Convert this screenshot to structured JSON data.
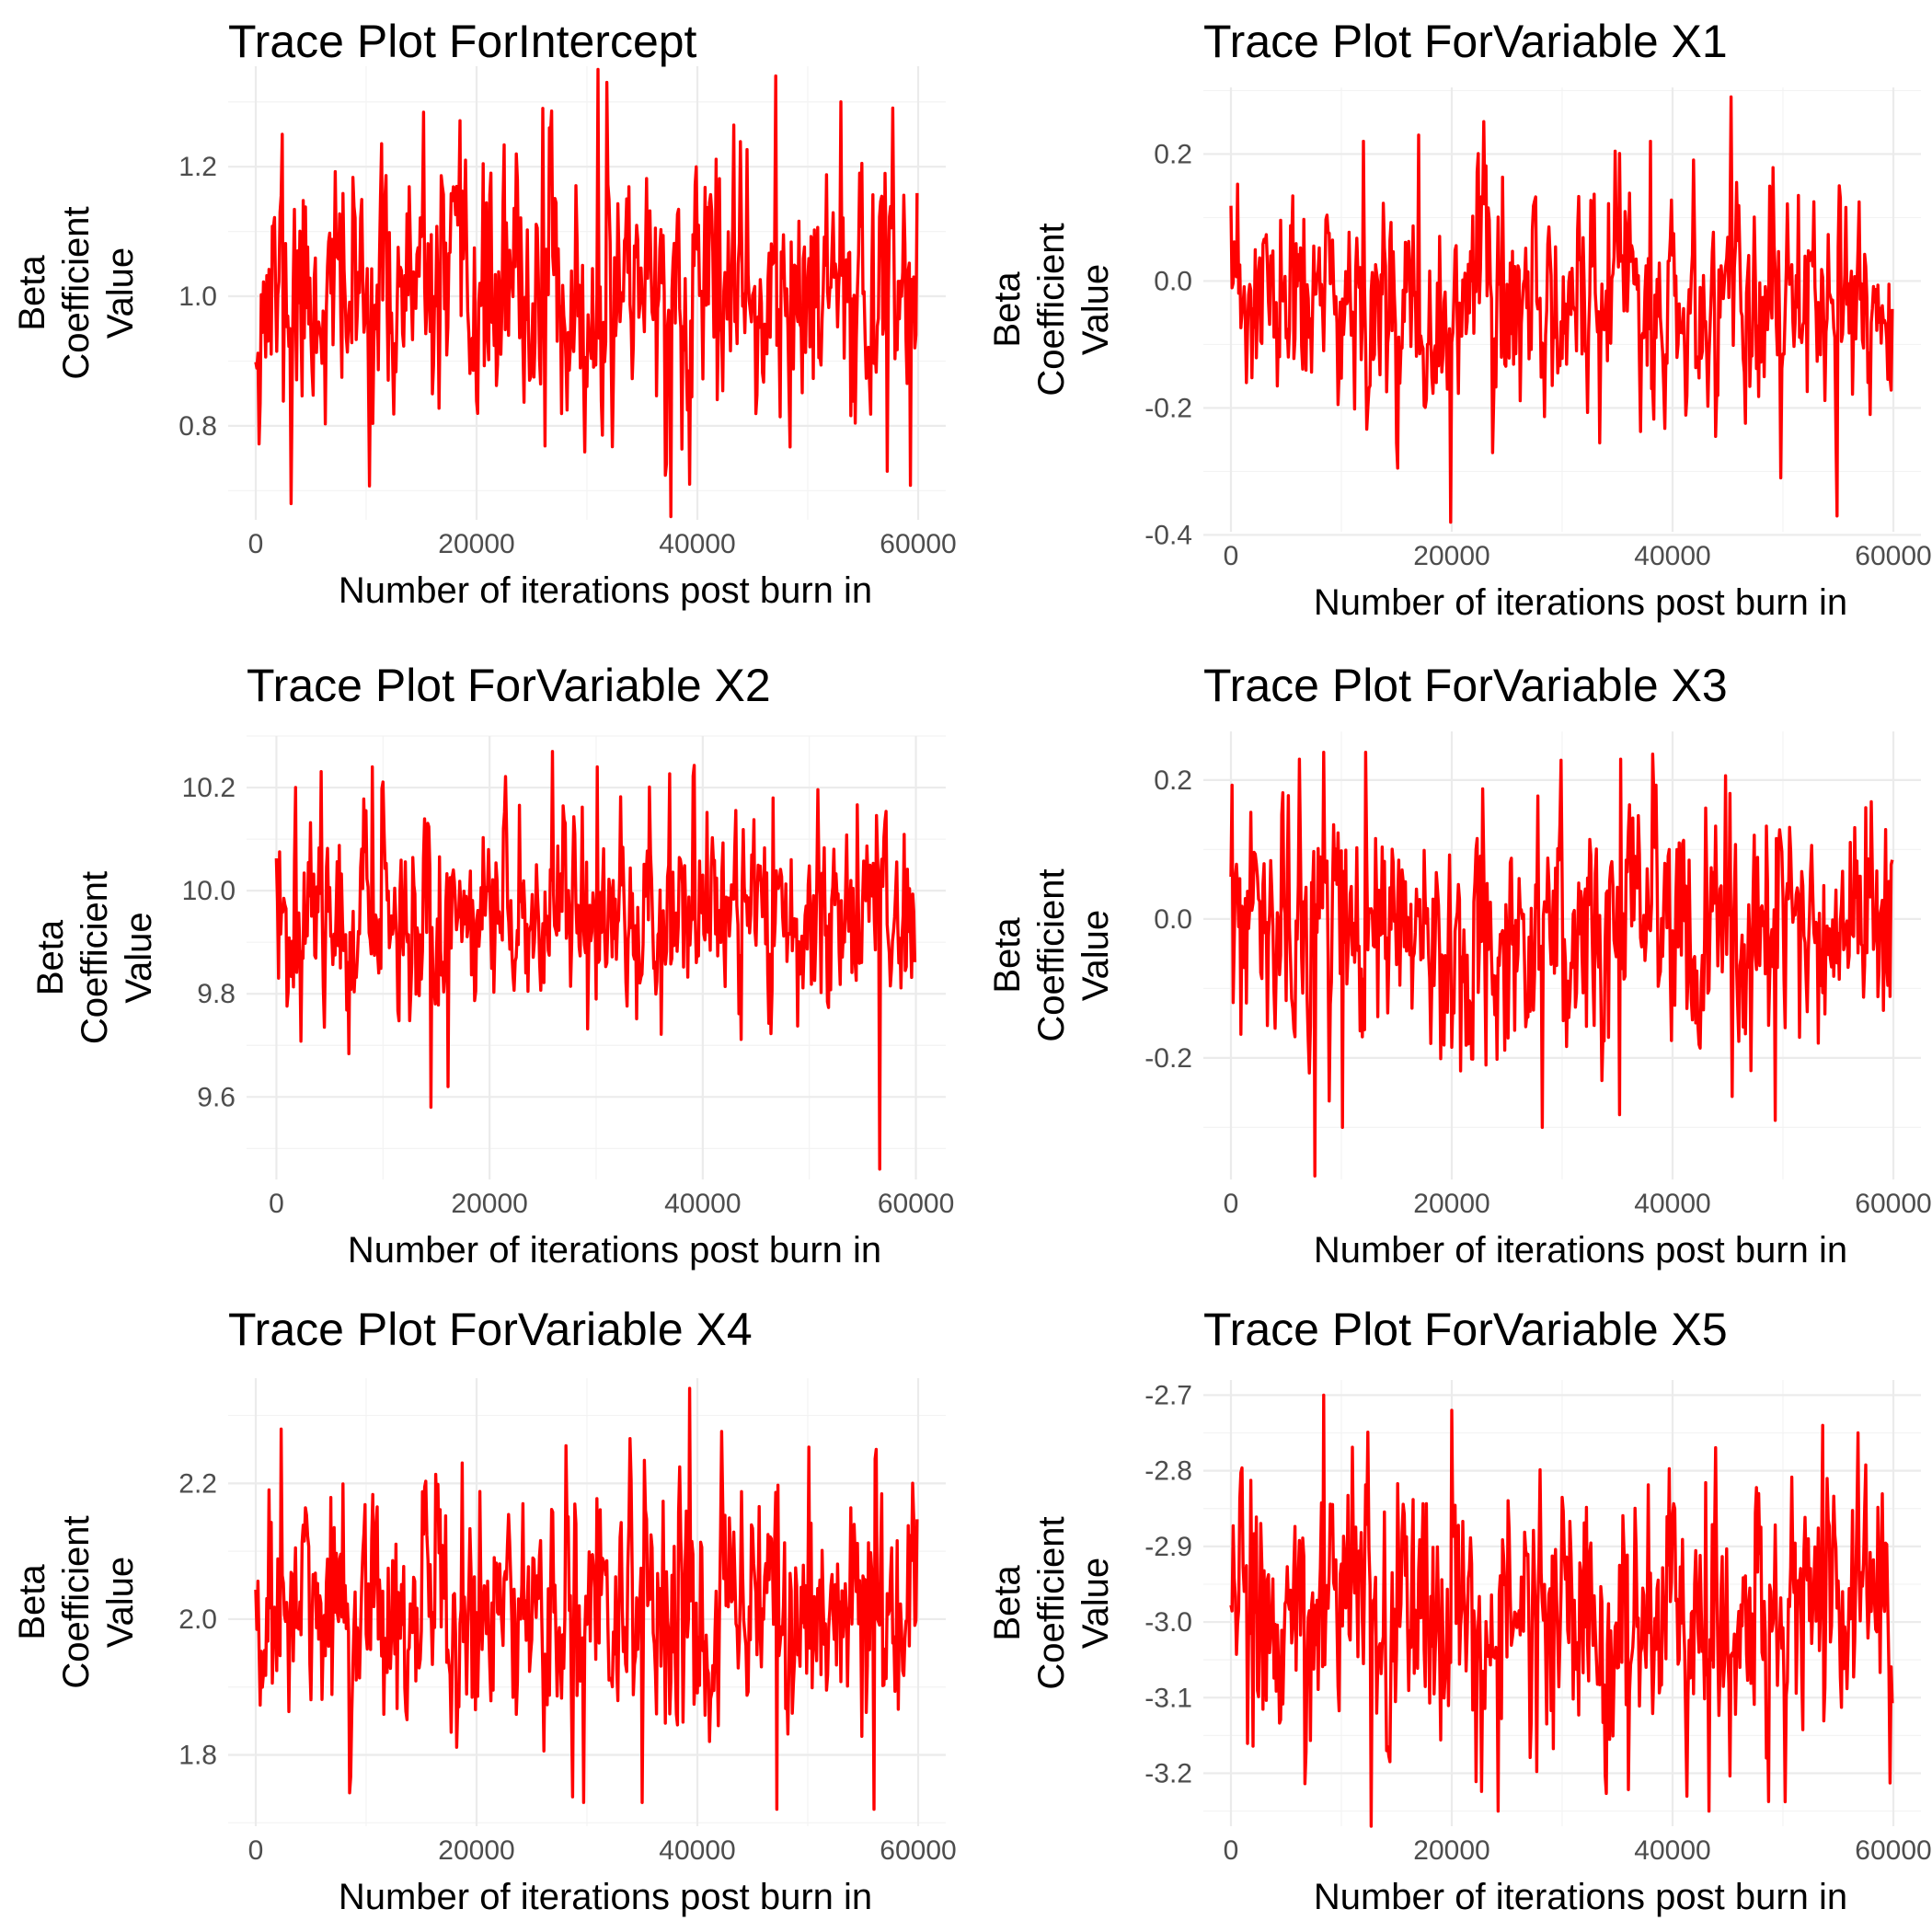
{
  "chart_data": [
    {
      "type": "line",
      "title": "Trace Plot ForIntercept",
      "xlabel": "Number of iterations post burn in",
      "ylabel_lines": [
        "Beta",
        "Coefficient",
        "Value"
      ],
      "xlim": [
        -2500,
        62500
      ],
      "ylim": [
        0.655,
        1.355
      ],
      "xticks": [
        0,
        20000,
        40000,
        60000
      ],
      "yticks": [
        0.8,
        1.0,
        1.2
      ],
      "xtick_labels": [
        "0",
        "20000",
        "40000",
        "60000"
      ],
      "ytick_labels": [
        "0.8",
        "1.0",
        "1.2"
      ],
      "line_color": "#ff0000",
      "series": {
        "mean": 1.0,
        "sd": 0.095,
        "count": 600,
        "seed": 11,
        "extremes": [
          [
            3200,
            0.68
          ],
          [
            31000,
            1.35
          ],
          [
            31800,
            1.33
          ],
          [
            37600,
            0.66
          ],
          [
            39300,
            0.71
          ],
          [
            47100,
            1.34
          ],
          [
            57200,
            0.73
          ],
          [
            2400,
            1.25
          ],
          [
            26000,
            1.29
          ],
          [
            53000,
            1.3
          ]
        ],
        "x_range": [
          0,
          59900
        ]
      }
    },
    {
      "type": "line",
      "title": "Trace Plot ForVariable X1",
      "xlabel": "Number of iterations post burn in",
      "ylabel_lines": [
        "Beta",
        "Coefficient",
        "Value"
      ],
      "xlim": [
        -2500,
        62500
      ],
      "ylim": [
        -0.395,
        0.305
      ],
      "xticks": [
        0,
        20000,
        40000,
        60000
      ],
      "yticks": [
        -0.4,
        -0.2,
        0.0,
        0.2
      ],
      "xtick_labels": [
        "0",
        "20000",
        "40000",
        "60000"
      ],
      "ytick_labels": [
        "-0.4",
        "-0.2",
        "0.0",
        "0.2"
      ],
      "line_color": "#ff0000",
      "series": {
        "mean": -0.04,
        "sd": 0.085,
        "count": 600,
        "seed": 23,
        "extremes": [
          [
            19900,
            -0.38
          ],
          [
            45300,
            0.29
          ],
          [
            54900,
            -0.37
          ],
          [
            17000,
            0.23
          ],
          [
            12000,
            0.22
          ],
          [
            38000,
            0.22
          ],
          [
            49800,
            -0.31
          ]
        ],
        "x_range": [
          0,
          59900
        ]
      }
    },
    {
      "type": "line",
      "title": "Trace Plot ForVariable X2",
      "xlabel": "Number of iterations post burn in",
      "ylabel_lines": [
        "Beta",
        "Coefficient",
        "Value"
      ],
      "xlim": [
        -2800,
        62800
      ],
      "ylim": [
        9.44,
        10.3
      ],
      "xticks": [
        0,
        20000,
        40000,
        60000
      ],
      "yticks": [
        9.6,
        9.8,
        10.0,
        10.2
      ],
      "xtick_labels": [
        "0",
        "20000",
        "40000",
        "60000"
      ],
      "ytick_labels": [
        "9.6",
        "9.8",
        "10.0",
        "10.2"
      ],
      "line_color": "#ff0000",
      "series": {
        "mean": 9.96,
        "sd": 0.095,
        "count": 600,
        "seed": 37,
        "extremes": [
          [
            56600,
            9.46
          ],
          [
            25900,
            10.27
          ],
          [
            14500,
            9.58
          ],
          [
            16100,
            9.62
          ],
          [
            9000,
            10.24
          ],
          [
            30100,
            10.24
          ],
          [
            1800,
            10.2
          ]
        ],
        "x_range": [
          0,
          59900
        ]
      }
    },
    {
      "type": "line",
      "title": "Trace Plot ForVariable X3",
      "xlabel": "Number of iterations post burn in",
      "ylabel_lines": [
        "Beta",
        "Coefficient",
        "Value"
      ],
      "xlim": [
        -2500,
        62500
      ],
      "ylim": [
        -0.375,
        0.27
      ],
      "xticks": [
        0,
        20000,
        40000,
        60000
      ],
      "yticks": [
        -0.2,
        0.0,
        0.2
      ],
      "xtick_labels": [
        "0",
        "20000",
        "40000",
        "60000"
      ],
      "ytick_labels": [
        "-0.2",
        "0.0",
        "0.2"
      ],
      "line_color": "#ff0000",
      "series": {
        "mean": -0.02,
        "sd": 0.085,
        "count": 600,
        "seed": 53,
        "extremes": [
          [
            7600,
            -0.37
          ],
          [
            12200,
            0.24
          ],
          [
            8400,
            0.24
          ],
          [
            6200,
            0.23
          ],
          [
            35300,
            0.23
          ],
          [
            10100,
            -0.3
          ],
          [
            28200,
            -0.3
          ],
          [
            49300,
            -0.29
          ]
        ],
        "x_range": [
          0,
          59900
        ]
      }
    },
    {
      "type": "line",
      "title": "Trace Plot ForVariable X4",
      "xlabel": "Number of iterations post burn in",
      "ylabel_lines": [
        "Beta",
        "Coefficient",
        "Value"
      ],
      "xlim": [
        -2500,
        62500
      ],
      "ylim": [
        1.695,
        2.355
      ],
      "xticks": [
        0,
        20000,
        40000,
        60000
      ],
      "yticks": [
        1.8,
        2.0,
        2.2
      ],
      "xtick_labels": [
        "0",
        "20000",
        "40000",
        "60000"
      ],
      "ytick_labels": [
        "1.8",
        "2.0",
        "2.2"
      ],
      "line_color": "#ff0000",
      "series": {
        "mean": 2.01,
        "sd": 0.09,
        "count": 600,
        "seed": 71,
        "extremes": [
          [
            39300,
            2.34
          ],
          [
            2300,
            2.28
          ],
          [
            56200,
            2.25
          ],
          [
            47200,
            1.72
          ],
          [
            56000,
            1.72
          ],
          [
            35000,
            1.73
          ],
          [
            29700,
            1.73
          ],
          [
            18700,
            2.23
          ]
        ],
        "x_range": [
          0,
          59900
        ]
      }
    },
    {
      "type": "line",
      "title": "Trace Plot ForVariable X5",
      "xlabel": "Number of iterations post burn in",
      "ylabel_lines": [
        "Beta",
        "Coefficient",
        "Value"
      ],
      "xlim": [
        -2500,
        62500
      ],
      "ylim": [
        -3.27,
        -2.68
      ],
      "xticks": [
        0,
        20000,
        40000,
        60000
      ],
      "yticks": [
        -3.2,
        -3.1,
        -3.0,
        -2.9,
        -2.8,
        -2.7
      ],
      "xtick_labels": [
        "0",
        "20000",
        "40000",
        "60000"
      ],
      "ytick_labels": [
        "-3.2",
        "-3.1",
        "-3.0",
        "-2.9",
        "-2.8",
        "-2.7"
      ],
      "line_color": "#ff0000",
      "series": {
        "mean": -2.99,
        "sd": 0.085,
        "count": 600,
        "seed": 89,
        "extremes": [
          [
            8400,
            -2.7
          ],
          [
            12700,
            -3.27
          ],
          [
            43300,
            -3.25
          ],
          [
            20000,
            -2.72
          ],
          [
            53600,
            -2.74
          ],
          [
            56800,
            -2.75
          ],
          [
            24200,
            -3.25
          ]
        ],
        "x_range": [
          0,
          59900
        ]
      }
    }
  ]
}
